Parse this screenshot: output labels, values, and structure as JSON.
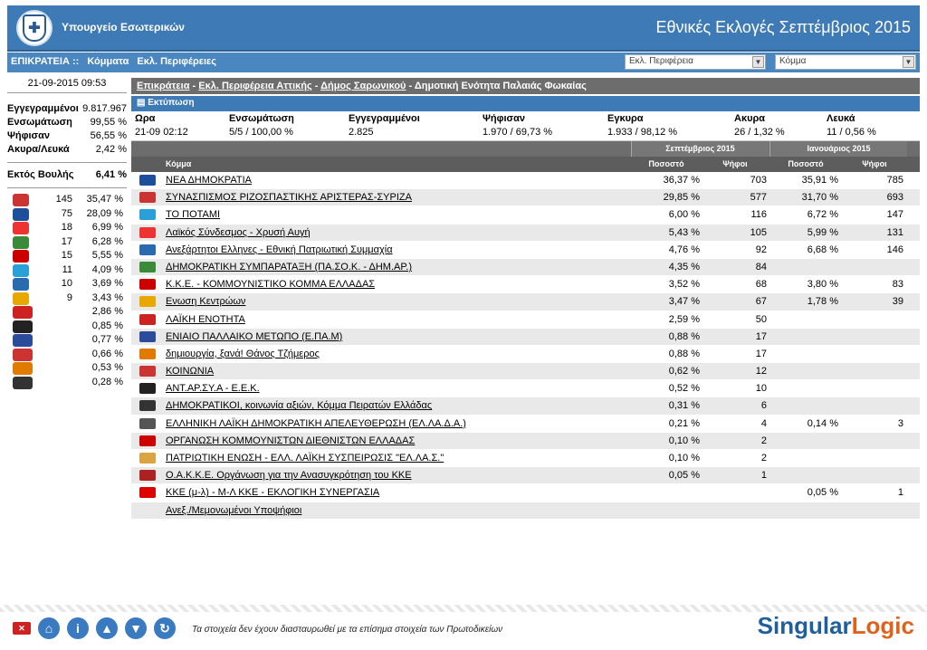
{
  "header": {
    "ministry": "Υπουργείο Εσωτερικών",
    "title": "Εθνικές Εκλογές Σεπτέμβριος 2015"
  },
  "nav": {
    "items": [
      "ΕΠΙΚΡΑΤΕΙΑ ::",
      "Κόμματα",
      "Εκλ. Περιφέρειες"
    ],
    "select_region": "Εκλ. Περιφέρεια",
    "select_party": "Κόμμα"
  },
  "left": {
    "datetime": "21-09-2015 09:53",
    "stats": [
      {
        "label": "Εγγεγραμμένοι",
        "value": "9.817.967"
      },
      {
        "label": "Ενσωμάτωση",
        "value": "99,55 %"
      },
      {
        "label": "Ψήφισαν",
        "value": "56,55 %"
      },
      {
        "label": "Ακυρα/Λευκά",
        "value": "2,42 %"
      }
    ],
    "outside": {
      "label": "Εκτός Βουλής",
      "value": "6,41 %"
    },
    "parties": [
      {
        "seats": "145",
        "pct": "35,47 %",
        "color": "#c33"
      },
      {
        "seats": "75",
        "pct": "28,09 %",
        "color": "#1d4f9a"
      },
      {
        "seats": "18",
        "pct": "6,99 %",
        "color": "#e33"
      },
      {
        "seats": "17",
        "pct": "6,28 %",
        "color": "#3a8a3a"
      },
      {
        "seats": "15",
        "pct": "5,55 %",
        "color": "#c00"
      },
      {
        "seats": "11",
        "pct": "4,09 %",
        "color": "#29a0d8"
      },
      {
        "seats": "10",
        "pct": "3,69 %",
        "color": "#2a6bb0"
      },
      {
        "seats": "9",
        "pct": "3,43 %",
        "color": "#e9a800"
      },
      {
        "seats": "",
        "pct": "2,86 %",
        "color": "#c22"
      },
      {
        "seats": "",
        "pct": "0,85 %",
        "color": "#222"
      },
      {
        "seats": "",
        "pct": "0,77 %",
        "color": "#2b4c9a"
      },
      {
        "seats": "",
        "pct": "0,66 %",
        "color": "#c33"
      },
      {
        "seats": "",
        "pct": "0,53 %",
        "color": "#e07a00"
      },
      {
        "seats": "",
        "pct": "0,28 %",
        "color": "#333"
      }
    ]
  },
  "breadcrumb": {
    "items": [
      "Επικράτεια",
      "Εκλ. Περιφέρεια Αττικής",
      "Δήμος Σαρωνικού"
    ],
    "current": "Δημοτική Ενότητα Παλαιάς Φωκαίας",
    "sep": " - "
  },
  "print": "Εκτύπωση",
  "summary": {
    "h_time": "Ωρα",
    "v_time": "21-09 02:12",
    "h_int": "Ενσωμάτωση",
    "v_int": "5/5 / 100,00 %",
    "h_reg": "Εγγεγραμμένοι",
    "v_reg": "2.825",
    "h_voted": "Ψήφισαν",
    "v_voted": "1.970 / 69,73 %",
    "h_valid": "Εγκυρα",
    "v_valid": "1.933 / 98,12 %",
    "h_invalid": "Ακυρα",
    "v_invalid": "26 / 1,32 %",
    "h_blank": "Λευκά",
    "v_blank": "11 / 0,56 %"
  },
  "grid": {
    "sept": "Σεπτέμβριος 2015",
    "jan": "Ιανουάριος 2015",
    "party": "Κόμμα",
    "pct": "Ποσοστό",
    "votes": "Ψήφοι",
    "rows": [
      {
        "name": "ΝΕΑ ΔΗΜΟΚΡΑΤΙΑ",
        "sp": "36,37 %",
        "sv": "703",
        "jp": "35,91 %",
        "jv": "785",
        "color": "#1d4f9a"
      },
      {
        "name": "ΣΥΝΑΣΠΙΣΜΟΣ ΡΙΖΟΣΠΑΣΤΙΚΗΣ ΑΡΙΣΤΕΡΑΣ-ΣΥΡΙΖΑ",
        "sp": "29,85 %",
        "sv": "577",
        "jp": "31,70 %",
        "jv": "693",
        "color": "#c33"
      },
      {
        "name": "ΤΟ ΠΟΤΑΜΙ",
        "sp": "6,00 %",
        "sv": "116",
        "jp": "6,72 %",
        "jv": "147",
        "color": "#29a0d8"
      },
      {
        "name": "Λαϊκός Σύνδεσμος - Χρυσή Αυγή",
        "sp": "5,43 %",
        "sv": "105",
        "jp": "5,99 %",
        "jv": "131",
        "color": "#e33"
      },
      {
        "name": "Ανεξάρτητοι Ελληνες - Εθνική Πατριωτική Συμμαχία",
        "sp": "4,76 %",
        "sv": "92",
        "jp": "6,68 %",
        "jv": "146",
        "color": "#2a6bb0"
      },
      {
        "name": "ΔΗΜΟΚΡΑΤΙΚΗ ΣΥΜΠΑΡΑΤΑΞΗ (ΠΑ.ΣΟ.Κ. - ΔΗΜ.ΑΡ.)",
        "sp": "4,35 %",
        "sv": "84",
        "jp": "",
        "jv": "",
        "color": "#3a8a3a"
      },
      {
        "name": "Κ.Κ.Ε. - ΚΟΜΜΟΥΝΙΣΤΙΚΟ ΚΟΜΜΑ ΕΛΛΑΔΑΣ",
        "sp": "3,52 %",
        "sv": "68",
        "jp": "3,80 %",
        "jv": "83",
        "color": "#c00"
      },
      {
        "name": "Ενωση Κεντρώων",
        "sp": "3,47 %",
        "sv": "67",
        "jp": "1,78 %",
        "jv": "39",
        "color": "#e9a800"
      },
      {
        "name": "ΛΑΪΚΗ ΕΝΟΤΗΤΑ",
        "sp": "2,59 %",
        "sv": "50",
        "jp": "",
        "jv": "",
        "color": "#c22"
      },
      {
        "name": "ΕΝΙΑΙΟ ΠΑΛΛΑΙΚΟ ΜΕΤΩΠΟ (Ε.ΠΑ.Μ)",
        "sp": "0,88 %",
        "sv": "17",
        "jp": "",
        "jv": "",
        "color": "#2b4c9a"
      },
      {
        "name": "δημιουργία, ξανά! Θάνος Τζήμερος",
        "sp": "0,88 %",
        "sv": "17",
        "jp": "",
        "jv": "",
        "color": "#e07a00"
      },
      {
        "name": "ΚΟΙΝΩΝΙΑ",
        "sp": "0,62 %",
        "sv": "12",
        "jp": "",
        "jv": "",
        "color": "#c33"
      },
      {
        "name": "ΑΝΤ.ΑΡ.ΣΥ.Α - Ε.Ε.Κ.",
        "sp": "0,52 %",
        "sv": "10",
        "jp": "",
        "jv": "",
        "color": "#222"
      },
      {
        "name": "ΔΗΜΟΚΡΑΤΙΚΟΙ, κοινωνία αξιών, Κόμμα Πειρατών Ελλάδας",
        "sp": "0,31 %",
        "sv": "6",
        "jp": "",
        "jv": "",
        "color": "#333"
      },
      {
        "name": "ΕΛΛΗΝΙΚΗ ΛΑΪΚΗ ΔΗΜΟΚΡΑΤΙΚΗ ΑΠΕΛΕΥΘΕΡΩΣΗ (ΕΛ.ΛΑ.Δ.Α.)",
        "sp": "0,21 %",
        "sv": "4",
        "jp": "0,14 %",
        "jv": "3",
        "color": "#555"
      },
      {
        "name": "ΟΡΓΑΝΩΣΗ ΚΟΜΜΟΥΝΙΣΤΩΝ ΔΙΕΘΝΙΣΤΩΝ ΕΛΛΑΔΑΣ",
        "sp": "0,10 %",
        "sv": "2",
        "jp": "",
        "jv": "",
        "color": "#c00"
      },
      {
        "name": "ΠΑΤΡΙΩΤΙΚΗ ΕΝΩΣΗ - ΕΛΛ. ΛΑΪΚΗ ΣΥΣΠΕΙΡΩΣΙΣ \"ΕΛ.ΛΑ.Σ.\"",
        "sp": "0,10 %",
        "sv": "2",
        "jp": "",
        "jv": "",
        "color": "#d9a441"
      },
      {
        "name": "Ο.Α.Κ.Κ.Ε. Οργάνωση για την Ανασυγκρότηση του ΚΚΕ",
        "sp": "0,05 %",
        "sv": "1",
        "jp": "",
        "jv": "",
        "color": "#a22"
      },
      {
        "name": "ΚΚΕ (μ-λ) - Μ-Λ ΚΚΕ - ΕΚΛΟΓΙΚΗ ΣΥΝΕΡΓΑΣΙΑ",
        "sp": "",
        "sv": "",
        "jp": "0,05 %",
        "jv": "1",
        "color": "#d00"
      },
      {
        "name": "Ανεξ./Μεμονωμένοι Υποψήφιοι",
        "sp": "",
        "sv": "",
        "jp": "",
        "jv": "",
        "color": ""
      }
    ]
  },
  "footer": {
    "note": "Τα στοιχεία δεν έχουν διασταυρωθεί με τα επίσημα στοιχεία των Πρωτοδικείων",
    "brand_a": "Singular",
    "brand_b": "Logic"
  }
}
